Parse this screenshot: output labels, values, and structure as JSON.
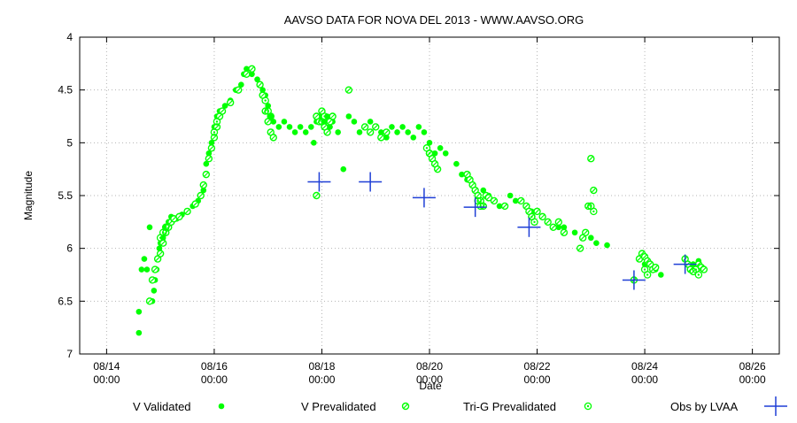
{
  "chart_data": {
    "type": "scatter",
    "title": "AAVSO DATA FOR NOVA DEL 2013 - WWW.AAVSO.ORG",
    "xlabel": "Date",
    "ylabel": "Magnitude",
    "x_range": [
      "08/14 00:00",
      "08/26 00:00"
    ],
    "ylim": [
      7,
      4
    ],
    "y_inverted": true,
    "grid": true,
    "legend_position": "bottom",
    "x_ticks": [
      {
        "date": "08/14",
        "time": "00:00",
        "day": 14
      },
      {
        "date": "08/16",
        "time": "00:00",
        "day": 16
      },
      {
        "date": "08/18",
        "time": "00:00",
        "day": 18
      },
      {
        "date": "08/20",
        "time": "00:00",
        "day": 20
      },
      {
        "date": "08/22",
        "time": "00:00",
        "day": 22
      },
      {
        "date": "08/24",
        "time": "00:00",
        "day": 24
      },
      {
        "date": "08/26",
        "time": "00:00",
        "day": 26
      }
    ],
    "y_ticks": [
      {
        "label": "4",
        "v": 4
      },
      {
        "label": "4.5",
        "v": 4.5
      },
      {
        "label": "5",
        "v": 5
      },
      {
        "label": "5.5",
        "v": 5.5
      },
      {
        "label": "6",
        "v": 6
      },
      {
        "label": "6.5",
        "v": 6.5
      },
      {
        "label": "7",
        "v": 7
      }
    ],
    "colors": {
      "green": "#00ff00",
      "blue": "#1f3fd6",
      "grid": "#b4b4b4"
    },
    "series": [
      {
        "name": "V Validated",
        "marker": "filled-circle",
        "points": [
          [
            14.6,
            6.8
          ],
          [
            14.6,
            6.6
          ],
          [
            14.65,
            6.2
          ],
          [
            14.7,
            6.1
          ],
          [
            14.75,
            6.2
          ],
          [
            14.8,
            5.8
          ],
          [
            14.85,
            6.5
          ],
          [
            14.88,
            6.4
          ],
          [
            14.9,
            6.3
          ],
          [
            14.93,
            6.2
          ],
          [
            14.95,
            6.1
          ],
          [
            14.98,
            6.0
          ],
          [
            15.0,
            5.95
          ],
          [
            15.05,
            5.9
          ],
          [
            15.1,
            5.8
          ],
          [
            15.15,
            5.75
          ],
          [
            15.2,
            5.7
          ],
          [
            15.3,
            5.72
          ],
          [
            15.4,
            5.68
          ],
          [
            15.5,
            5.65
          ],
          [
            15.6,
            5.6
          ],
          [
            15.7,
            5.55
          ],
          [
            15.8,
            5.45
          ],
          [
            15.85,
            5.2
          ],
          [
            15.9,
            5.1
          ],
          [
            15.95,
            5.0
          ],
          [
            16.0,
            4.85
          ],
          [
            16.05,
            4.75
          ],
          [
            16.1,
            4.7
          ],
          [
            16.2,
            4.65
          ],
          [
            16.3,
            4.6
          ],
          [
            16.4,
            4.5
          ],
          [
            16.5,
            4.45
          ],
          [
            16.55,
            4.35
          ],
          [
            16.6,
            4.3
          ],
          [
            16.7,
            4.35
          ],
          [
            16.8,
            4.4
          ],
          [
            16.9,
            4.5
          ],
          [
            16.95,
            4.55
          ],
          [
            17.0,
            4.65
          ],
          [
            17.05,
            4.75
          ],
          [
            17.1,
            4.8
          ],
          [
            17.2,
            4.85
          ],
          [
            17.3,
            4.8
          ],
          [
            17.4,
            4.85
          ],
          [
            17.5,
            4.9
          ],
          [
            17.6,
            4.85
          ],
          [
            17.7,
            4.9
          ],
          [
            17.8,
            4.85
          ],
          [
            17.85,
            5.0
          ],
          [
            17.9,
            4.8
          ],
          [
            17.95,
            4.75
          ],
          [
            18.0,
            4.7
          ],
          [
            18.05,
            4.8
          ],
          [
            18.1,
            4.75
          ],
          [
            18.15,
            4.85
          ],
          [
            18.2,
            4.8
          ],
          [
            18.3,
            4.9
          ],
          [
            18.4,
            5.25
          ],
          [
            18.5,
            4.75
          ],
          [
            18.6,
            4.8
          ],
          [
            18.7,
            4.9
          ],
          [
            18.8,
            4.85
          ],
          [
            18.9,
            4.8
          ],
          [
            19.0,
            4.85
          ],
          [
            19.1,
            4.9
          ],
          [
            19.2,
            4.95
          ],
          [
            19.3,
            4.85
          ],
          [
            19.4,
            4.9
          ],
          [
            19.5,
            4.85
          ],
          [
            19.6,
            4.9
          ],
          [
            19.7,
            4.95
          ],
          [
            19.8,
            4.85
          ],
          [
            19.9,
            4.9
          ],
          [
            20.0,
            5.0
          ],
          [
            20.1,
            5.1
          ],
          [
            20.2,
            5.05
          ],
          [
            20.3,
            5.1
          ],
          [
            20.5,
            5.2
          ],
          [
            20.6,
            5.3
          ],
          [
            20.7,
            5.35
          ],
          [
            20.8,
            5.4
          ],
          [
            21.0,
            5.45
          ],
          [
            21.1,
            5.5
          ],
          [
            21.3,
            5.6
          ],
          [
            21.5,
            5.5
          ],
          [
            21.6,
            5.55
          ],
          [
            21.8,
            5.6
          ],
          [
            21.9,
            5.65
          ],
          [
            22.1,
            5.7
          ],
          [
            22.2,
            5.75
          ],
          [
            22.4,
            5.8
          ],
          [
            22.5,
            5.8
          ],
          [
            22.7,
            5.85
          ],
          [
            22.9,
            5.85
          ],
          [
            23.0,
            5.9
          ],
          [
            23.1,
            5.95
          ],
          [
            23.3,
            5.97
          ],
          [
            24.0,
            6.15
          ],
          [
            24.2,
            6.2
          ],
          [
            24.3,
            6.25
          ],
          [
            24.9,
            6.15
          ],
          [
            25.0,
            6.12
          ]
        ]
      },
      {
        "name": "V Prevalidated",
        "marker": "hatched-circle",
        "points": [
          [
            14.8,
            6.5
          ],
          [
            14.85,
            6.3
          ],
          [
            14.9,
            6.2
          ],
          [
            14.95,
            6.1
          ],
          [
            15.0,
            6.05
          ],
          [
            15.05,
            5.95
          ],
          [
            15.1,
            5.85
          ],
          [
            15.15,
            5.8
          ],
          [
            15.2,
            5.75
          ],
          [
            15.25,
            5.72
          ],
          [
            15.35,
            5.7
          ],
          [
            15.5,
            5.65
          ],
          [
            15.65,
            5.58
          ],
          [
            15.75,
            5.5
          ],
          [
            15.8,
            5.4
          ],
          [
            15.85,
            5.3
          ],
          [
            15.9,
            5.15
          ],
          [
            15.95,
            5.05
          ],
          [
            16.0,
            4.95
          ],
          [
            16.05,
            4.85
          ],
          [
            16.1,
            4.75
          ],
          [
            16.15,
            4.7
          ],
          [
            16.3,
            4.62
          ],
          [
            16.45,
            4.5
          ],
          [
            16.6,
            4.35
          ],
          [
            16.7,
            4.3
          ],
          [
            16.85,
            4.45
          ],
          [
            16.9,
            4.55
          ],
          [
            16.95,
            4.7
          ],
          [
            17.0,
            4.8
          ],
          [
            17.05,
            4.9
          ],
          [
            17.1,
            4.95
          ],
          [
            17.9,
            4.75
          ],
          [
            17.95,
            4.8
          ],
          [
            18.0,
            4.7
          ],
          [
            18.05,
            4.85
          ],
          [
            18.1,
            4.9
          ],
          [
            18.15,
            4.8
          ],
          [
            18.2,
            4.75
          ],
          [
            17.9,
            5.5
          ],
          [
            18.5,
            4.5
          ],
          [
            18.8,
            4.85
          ],
          [
            18.9,
            4.9
          ],
          [
            19.0,
            4.85
          ],
          [
            19.1,
            4.95
          ],
          [
            19.2,
            4.9
          ],
          [
            20.0,
            5.1
          ],
          [
            20.05,
            5.15
          ],
          [
            20.1,
            5.2
          ],
          [
            20.15,
            5.25
          ],
          [
            20.7,
            5.3
          ],
          [
            20.75,
            5.35
          ],
          [
            20.8,
            5.4
          ],
          [
            20.85,
            5.45
          ],
          [
            20.9,
            5.5
          ],
          [
            20.95,
            5.55
          ],
          [
            21.0,
            5.6
          ],
          [
            21.05,
            5.5
          ],
          [
            21.1,
            5.52
          ],
          [
            21.2,
            5.55
          ],
          [
            21.4,
            5.6
          ],
          [
            21.7,
            5.55
          ],
          [
            21.8,
            5.6
          ],
          [
            21.85,
            5.65
          ],
          [
            21.9,
            5.7
          ],
          [
            22.0,
            5.65
          ],
          [
            22.1,
            5.7
          ],
          [
            22.2,
            5.75
          ],
          [
            22.3,
            5.8
          ],
          [
            22.4,
            5.75
          ],
          [
            22.5,
            5.85
          ],
          [
            22.8,
            6.0
          ],
          [
            22.85,
            5.9
          ],
          [
            22.9,
            5.85
          ],
          [
            22.95,
            5.6
          ],
          [
            23.0,
            5.15
          ],
          [
            23.05,
            5.45
          ],
          [
            23.8,
            6.3
          ],
          [
            23.9,
            6.1
          ],
          [
            23.95,
            6.05
          ],
          [
            24.0,
            6.08
          ],
          [
            24.05,
            6.12
          ],
          [
            24.1,
            6.15
          ],
          [
            24.15,
            6.2
          ],
          [
            24.2,
            6.18
          ],
          [
            24.75,
            6.1
          ],
          [
            24.8,
            6.15
          ],
          [
            24.85,
            6.2
          ],
          [
            24.9,
            6.22
          ],
          [
            25.0,
            6.15
          ],
          [
            25.05,
            6.18
          ],
          [
            25.1,
            6.2
          ]
        ]
      },
      {
        "name": "Tri-G Prevalidated",
        "marker": "hollow-circle",
        "points": [
          [
            15.0,
            5.9
          ],
          [
            15.05,
            5.85
          ],
          [
            15.1,
            5.8
          ],
          [
            16.0,
            4.9
          ],
          [
            16.05,
            4.8
          ],
          [
            16.95,
            4.6
          ],
          [
            17.0,
            4.7
          ],
          [
            17.05,
            4.75
          ],
          [
            18.0,
            4.8
          ],
          [
            18.05,
            4.75
          ],
          [
            19.95,
            5.05
          ],
          [
            20.0,
            5.1
          ],
          [
            20.9,
            5.55
          ],
          [
            20.95,
            5.6
          ],
          [
            21.9,
            5.7
          ],
          [
            21.95,
            5.75
          ],
          [
            23.0,
            5.6
          ],
          [
            23.05,
            5.65
          ],
          [
            24.0,
            6.2
          ],
          [
            24.05,
            6.25
          ],
          [
            24.95,
            6.2
          ],
          [
            25.0,
            6.25
          ]
        ]
      },
      {
        "name": "Obs by LVAA",
        "marker": "plus",
        "points": [
          [
            17.95,
            5.37
          ],
          [
            18.9,
            5.37
          ],
          [
            19.9,
            5.52
          ],
          [
            20.85,
            5.61
          ],
          [
            21.85,
            5.8
          ],
          [
            23.8,
            6.3
          ],
          [
            24.75,
            6.15
          ]
        ]
      }
    ]
  },
  "legend": {
    "items": [
      {
        "label": "V Validated",
        "marker": "filled-circle"
      },
      {
        "label": "V Prevalidated",
        "marker": "hatched-circle"
      },
      {
        "label": "Tri-G Prevalidated",
        "marker": "hollow-circle"
      },
      {
        "label": "Obs by LVAA",
        "marker": "plus"
      }
    ]
  }
}
